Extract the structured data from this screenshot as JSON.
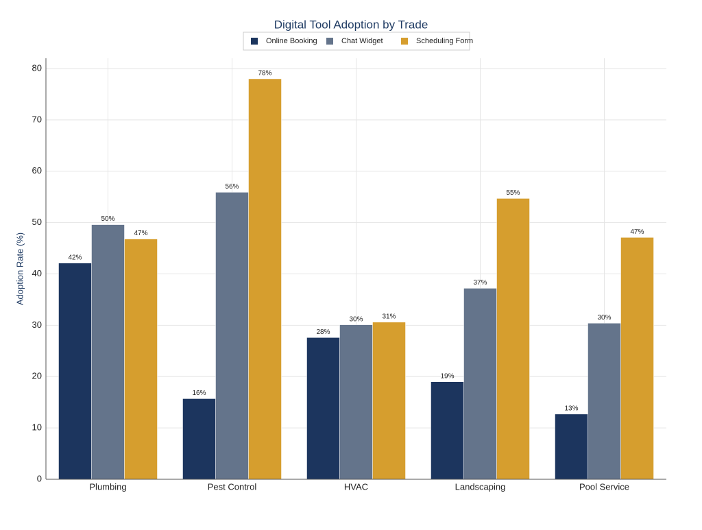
{
  "chart_data": {
    "type": "bar",
    "title": "Digital Tool Adoption by Trade",
    "y_label": "Adoption Rate (%)",
    "categories": [
      "Plumbing",
      "Pest Control",
      "HVAC",
      "Landscaping",
      "Pool Service"
    ],
    "series": [
      {
        "name": "Online Booking",
        "color": "#1c355e",
        "values": [
          42.1,
          15.7,
          27.6,
          19.0,
          12.7
        ],
        "value_labels": [
          "42%",
          "16%",
          "28%",
          "19%",
          "13%"
        ]
      },
      {
        "name": "Chat Widget",
        "color": "#64748b",
        "values": [
          49.6,
          55.9,
          30.1,
          37.2,
          30.4
        ],
        "value_labels": [
          "50%",
          "56%",
          "30%",
          "37%",
          "30%"
        ]
      },
      {
        "name": "Scheduling Form",
        "color": "#d69e2e",
        "values": [
          46.8,
          78.0,
          30.6,
          54.7,
          47.1
        ],
        "value_labels": [
          "47%",
          "78%",
          "31%",
          "55%",
          "47%"
        ]
      }
    ],
    "ylim": [
      0,
      82
    ],
    "yticks": [
      0,
      10,
      20,
      30,
      40,
      50,
      60,
      70,
      80
    ],
    "grid": true,
    "legend": "top"
  }
}
